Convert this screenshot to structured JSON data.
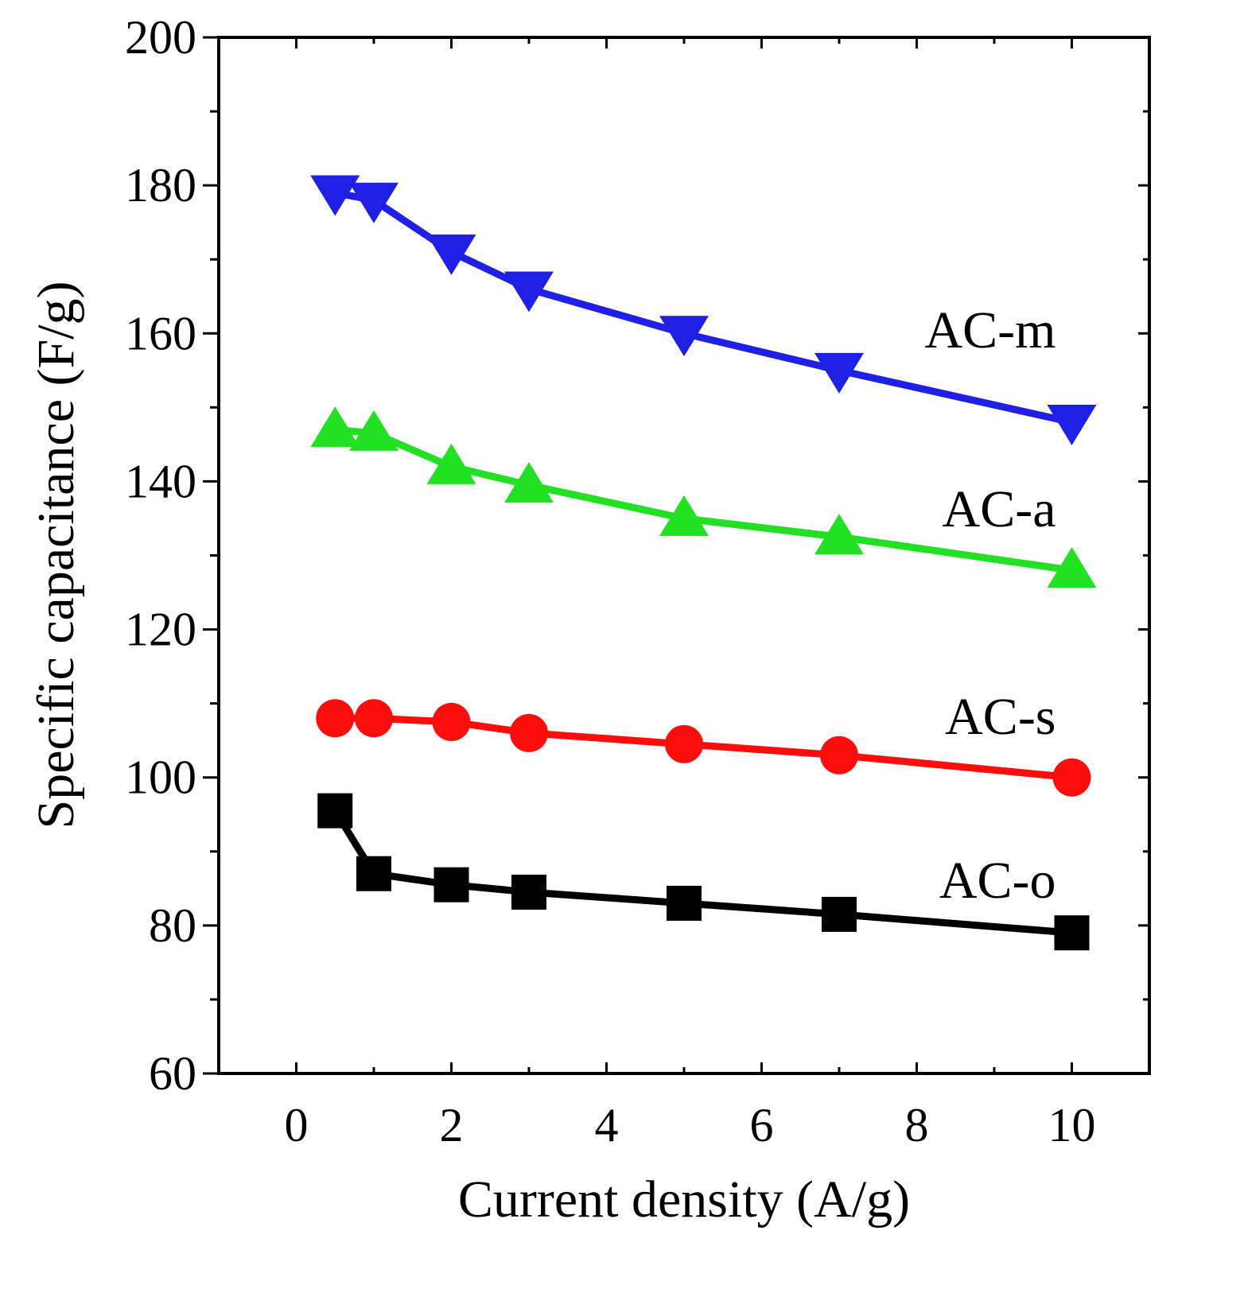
{
  "chart_data": {
    "type": "line",
    "title": "",
    "xlabel": "Current density (A/g)",
    "ylabel": "Specific capacitance (F/g)",
    "xlim": [
      -1,
      11
    ],
    "ylim": [
      60,
      200
    ],
    "xticks": [
      0,
      2,
      4,
      6,
      8,
      10
    ],
    "yticks": [
      60,
      80,
      100,
      120,
      140,
      160,
      180,
      200
    ],
    "x": [
      0.5,
      1,
      2,
      3,
      5,
      7,
      10
    ],
    "series": [
      {
        "name": "AC-m",
        "color": "#1f1fe6",
        "marker": "triangle-down",
        "values": [
          179,
          178,
          171,
          166,
          160,
          155,
          148
        ]
      },
      {
        "name": "AC-a",
        "color": "#22e022",
        "marker": "triangle-up",
        "values": [
          147,
          146.5,
          142,
          139.5,
          135,
          132.5,
          128
        ]
      },
      {
        "name": "AC-s",
        "color": "#ff0d0d",
        "marker": "circle",
        "values": [
          108,
          108,
          107.5,
          106,
          104.5,
          103,
          100
        ]
      },
      {
        "name": "AC-o",
        "color": "#000000",
        "marker": "square",
        "values": [
          95.5,
          87,
          85.5,
          84.5,
          83,
          81.5,
          79
        ]
      }
    ],
    "grid": false,
    "legend": "inline labels to the right of each series"
  }
}
